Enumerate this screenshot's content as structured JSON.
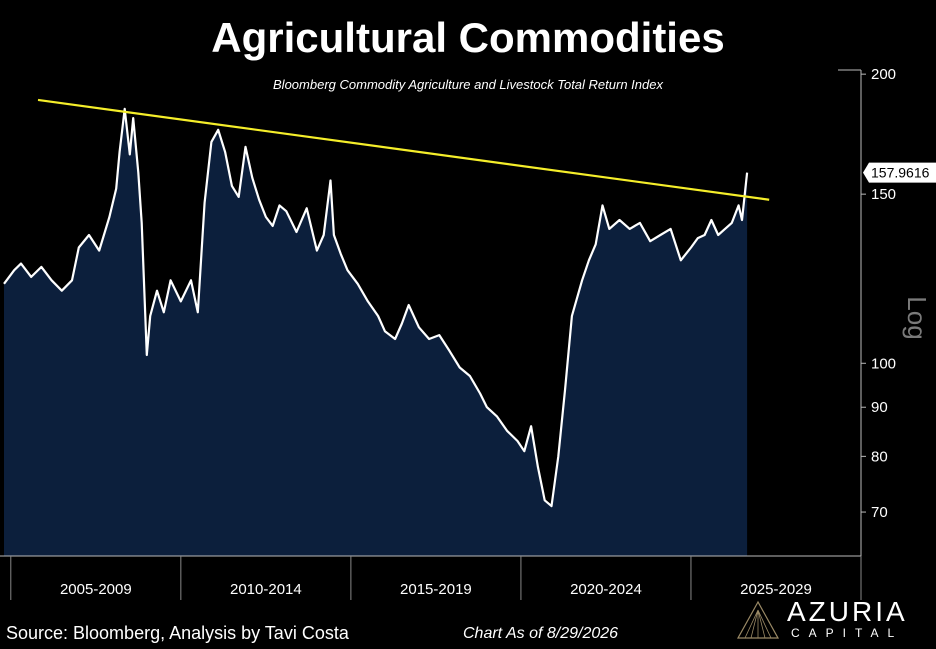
{
  "chart_data": {
    "type": "area",
    "title": "Agricultural Commodities",
    "subtitle": "Bloomberg Commodity Agriculture and Livestock Total Return Index",
    "y_scale": "log",
    "y_axis_label": "Log",
    "ylim": [
      63,
      202
    ],
    "y_ticks": [
      70,
      80,
      90,
      100,
      150,
      200
    ],
    "x_period_labels": [
      "2005-2009",
      "2010-2014",
      "2015-2019",
      "2020-2024",
      "2025-2029"
    ],
    "x_range": [
      2004.8,
      2030.0
    ],
    "last_value_label": "157.9616",
    "series": [
      {
        "color": "#ffffff",
        "fill": "#0c1f3c",
        "x": [
          2004.8,
          2005.1,
          2005.3,
          2005.6,
          2005.9,
          2006.2,
          2006.5,
          2006.8,
          2007.0,
          2007.3,
          2007.6,
          2007.9,
          2008.1,
          2008.2,
          2008.35,
          2008.5,
          2008.6,
          2008.75,
          2008.85,
          2009.0,
          2009.1,
          2009.3,
          2009.5,
          2009.7,
          2010.0,
          2010.3,
          2010.5,
          2010.7,
          2010.9,
          2011.1,
          2011.3,
          2011.5,
          2011.7,
          2011.9,
          2012.1,
          2012.3,
          2012.5,
          2012.7,
          2012.9,
          2013.1,
          2013.4,
          2013.7,
          2014.0,
          2014.2,
          2014.4,
          2014.5,
          2014.7,
          2014.9,
          2015.2,
          2015.5,
          2015.8,
          2016.0,
          2016.3,
          2016.5,
          2016.7,
          2017.0,
          2017.3,
          2017.6,
          2017.9,
          2018.2,
          2018.5,
          2018.8,
          2019.0,
          2019.3,
          2019.6,
          2019.9,
          2020.1,
          2020.3,
          2020.5,
          2020.7,
          2020.9,
          2021.1,
          2021.3,
          2021.5,
          2021.8,
          2022.0,
          2022.2,
          2022.4,
          2022.6,
          2022.9,
          2023.2,
          2023.5,
          2023.8,
          2024.1,
          2024.4,
          2024.7,
          2025.0,
          2025.2,
          2025.4,
          2025.6,
          2025.8,
          2026.0,
          2026.2,
          2026.4,
          2026.5,
          2026.65
        ],
        "values": [
          121,
          125,
          127,
          123,
          126,
          122,
          119,
          122,
          132,
          136,
          131,
          142,
          152,
          166,
          184,
          165,
          180,
          158,
          140,
          102,
          112,
          119,
          113,
          122,
          116,
          122,
          113,
          147,
          170,
          175,
          166,
          153,
          149,
          168,
          156,
          148,
          142,
          139,
          146,
          144,
          137,
          145,
          131,
          136,
          155,
          136,
          130,
          125,
          121,
          116,
          112,
          108,
          106,
          110,
          115,
          109,
          106,
          107,
          103,
          99,
          97,
          93,
          90,
          88,
          85,
          83,
          81,
          86,
          78,
          72,
          71,
          80,
          94,
          112,
          122,
          128,
          133,
          146,
          138,
          141,
          138,
          140,
          134,
          136,
          138,
          128,
          132,
          135,
          136,
          141,
          136,
          138,
          140,
          146,
          141,
          157.96
        ]
      }
    ],
    "trendline": {
      "color": "#f5ee2a",
      "x": [
        2005.8,
        2027.3
      ],
      "values": [
        188,
        148
      ]
    },
    "grid": false,
    "legend": "none"
  },
  "footer": {
    "source": "Source: Bloomberg, Analysis by Tavi Costa",
    "chart_date": "Chart As of 8/29/2026"
  },
  "brand": {
    "name": "AZURIA",
    "sub": "CAPITAL"
  }
}
